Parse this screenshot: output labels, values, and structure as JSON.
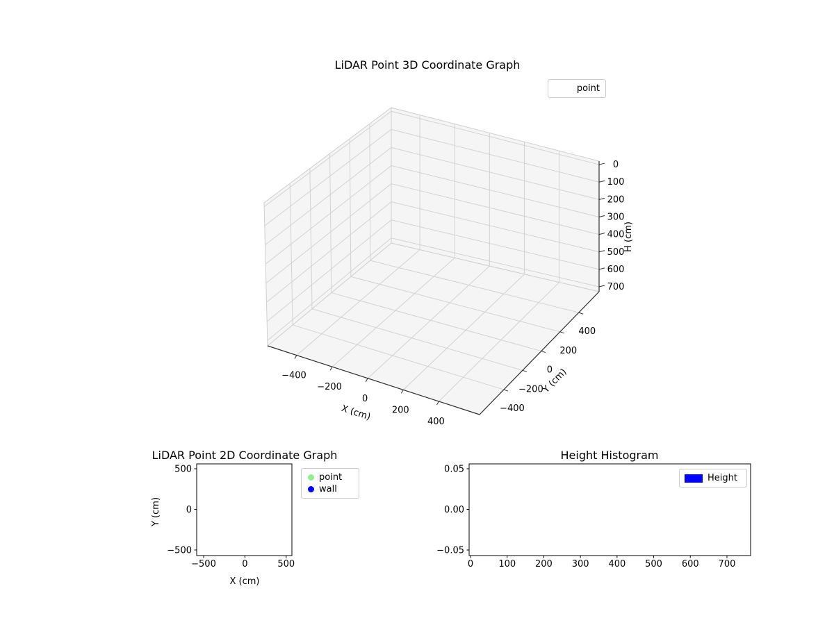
{
  "figure": {
    "background": "#ffffff"
  },
  "chart_data": [
    {
      "id": "lidar-3d",
      "type": "scatter3d",
      "title": "LiDAR Point 3D Coordinate Graph",
      "xlabel": "X (cm)",
      "ylabel": "Y (cm)",
      "zlabel": "H (cm)",
      "xticks": [
        -400,
        -200,
        0,
        200,
        400
      ],
      "yticks": [
        -400,
        -200,
        0,
        200,
        400
      ],
      "zticks": [
        0,
        100,
        200,
        300,
        400,
        500,
        600,
        700
      ],
      "zaxis_inverted": true,
      "grid": true,
      "legend": {
        "position": "upper right",
        "entries": [
          {
            "label": "point",
            "marker": "blank"
          }
        ]
      },
      "series": [
        {
          "name": "point",
          "points": []
        }
      ]
    },
    {
      "id": "lidar-2d",
      "type": "scatter",
      "title": "LiDAR Point 2D Coordinate Graph",
      "xlabel": "X (cm)",
      "ylabel": "Y (cm)",
      "xticks": [
        -500,
        0,
        500
      ],
      "yticks": [
        500,
        0,
        -500
      ],
      "xlim": [
        -570,
        570
      ],
      "ylim": [
        -570,
        570
      ],
      "grid": false,
      "legend": {
        "position": "outside right",
        "entries": [
          {
            "label": "point",
            "color": "#90ee90",
            "marker": "circle"
          },
          {
            "label": "wall",
            "color": "#0000ff",
            "marker": "circle"
          }
        ]
      },
      "series": [
        {
          "name": "point",
          "color": "#90ee90",
          "points": []
        },
        {
          "name": "wall",
          "color": "#0000ff",
          "points": []
        }
      ]
    },
    {
      "id": "height-histogram",
      "type": "bar",
      "title": "Height Histogram",
      "xlabel": "",
      "ylabel": "",
      "xticks": [
        0,
        100,
        200,
        300,
        400,
        500,
        600,
        700
      ],
      "ytick_labels": [
        "0.05",
        "0.00",
        "−0.05"
      ],
      "xlim": [
        0,
        768
      ],
      "ylim": [
        -0.05,
        0.05
      ],
      "grid": false,
      "legend": {
        "position": "upper right",
        "entries": [
          {
            "label": "Height",
            "color": "#0000ff",
            "marker": "patch"
          }
        ]
      },
      "values": []
    }
  ]
}
